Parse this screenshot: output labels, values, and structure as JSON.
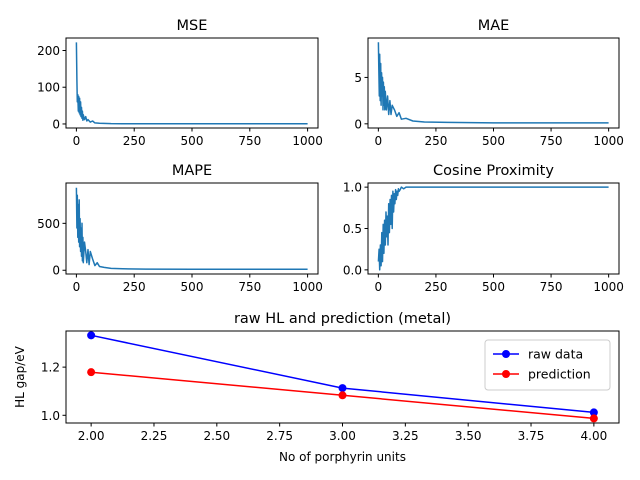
{
  "chart_data": [
    {
      "id": "mse",
      "type": "line",
      "title": "MSE",
      "xlabel": "",
      "ylabel": "",
      "xlim": [
        -45,
        1045
      ],
      "ylim": [
        -11,
        234
      ],
      "xticks": [
        0,
        250,
        500,
        750,
        1000
      ],
      "yticks": [
        0,
        100,
        200
      ],
      "color": "#1f77b4",
      "series": [
        {
          "x": [
            0,
            2,
            4,
            6,
            8,
            10,
            12,
            14,
            16,
            18,
            20,
            22,
            24,
            26,
            28,
            30,
            35,
            40,
            45,
            50,
            60,
            70,
            80,
            100,
            150,
            200,
            300,
            500,
            700,
            1000
          ],
          "y": [
            222,
            120,
            60,
            80,
            35,
            75,
            30,
            70,
            25,
            60,
            20,
            45,
            15,
            35,
            10,
            25,
            12,
            20,
            8,
            12,
            5,
            8,
            3,
            2,
            1,
            0.8,
            0.5,
            0.5,
            0.5,
            0.5
          ]
        }
      ]
    },
    {
      "id": "mae",
      "type": "line",
      "title": "MAE",
      "xlabel": "",
      "ylabel": "",
      "xlim": [
        -45,
        1045
      ],
      "ylim": [
        -0.45,
        9.25
      ],
      "xticks": [
        0,
        250,
        500,
        750,
        1000
      ],
      "yticks": [
        0,
        5
      ],
      "color": "#1f77b4",
      "series": [
        {
          "x": [
            0,
            2,
            4,
            6,
            8,
            10,
            12,
            14,
            16,
            18,
            20,
            22,
            24,
            26,
            28,
            30,
            35,
            40,
            45,
            50,
            55,
            60,
            70,
            80,
            90,
            100,
            120,
            150,
            200,
            300,
            500,
            700,
            1000
          ],
          "y": [
            8.8,
            6.0,
            3.0,
            7.5,
            2.5,
            6.5,
            2.0,
            5.5,
            3.0,
            5.0,
            1.5,
            4.5,
            2.0,
            4.0,
            1.5,
            3.5,
            1.5,
            3.0,
            1.0,
            2.5,
            1.0,
            2.0,
            1.5,
            0.8,
            1.2,
            0.5,
            0.6,
            0.3,
            0.2,
            0.15,
            0.1,
            0.1,
            0.1
          ]
        }
      ]
    },
    {
      "id": "mape",
      "type": "line",
      "title": "MAPE",
      "xlabel": "",
      "ylabel": "",
      "xlim": [
        -45,
        1045
      ],
      "ylim": [
        -40,
        930
      ],
      "xticks": [
        0,
        250,
        500,
        750,
        1000
      ],
      "yticks": [
        0,
        500
      ],
      "color": "#1f77b4",
      "series": [
        {
          "x": [
            0,
            2,
            4,
            6,
            8,
            10,
            12,
            14,
            16,
            18,
            20,
            22,
            24,
            26,
            28,
            30,
            35,
            40,
            45,
            50,
            55,
            60,
            70,
            80,
            90,
            100,
            120,
            150,
            200,
            300,
            500,
            700,
            1000
          ],
          "y": [
            880,
            450,
            800,
            350,
            700,
            300,
            750,
            250,
            550,
            200,
            450,
            150,
            500,
            100,
            350,
            80,
            300,
            200,
            80,
            220,
            60,
            200,
            120,
            50,
            80,
            40,
            30,
            20,
            15,
            12,
            10,
            10,
            10
          ]
        }
      ]
    },
    {
      "id": "cos",
      "type": "line",
      "title": "Cosine Proximity",
      "xlabel": "",
      "ylabel": "",
      "xlim": [
        -45,
        1045
      ],
      "ylim": [
        -0.05,
        1.05
      ],
      "xticks": [
        0,
        250,
        500,
        750,
        1000
      ],
      "yticks": [
        0.0,
        0.5,
        1.0
      ],
      "ytick_labels": [
        "0.0",
        "0.5",
        "1.0"
      ],
      "color": "#1f77b4",
      "series": [
        {
          "x": [
            0,
            3,
            6,
            9,
            12,
            15,
            18,
            21,
            24,
            27,
            30,
            33,
            36,
            39,
            42,
            45,
            48,
            51,
            54,
            57,
            60,
            63,
            66,
            69,
            72,
            75,
            78,
            81,
            84,
            87,
            90,
            95,
            100,
            110,
            120,
            150,
            200,
            300,
            500,
            700,
            1000
          ],
          "y": [
            0.1,
            0.25,
            0.0,
            0.3,
            0.05,
            0.45,
            0.1,
            0.55,
            0.2,
            0.6,
            0.3,
            0.7,
            0.4,
            0.65,
            0.3,
            0.8,
            0.45,
            0.85,
            0.55,
            0.9,
            0.5,
            0.95,
            0.7,
            0.92,
            0.8,
            0.97,
            0.85,
            0.95,
            0.9,
            0.98,
            0.95,
            0.97,
            1.0,
            0.98,
            1.0,
            1.0,
            1.0,
            1.0,
            1.0,
            1.0,
            1.0
          ]
        }
      ]
    },
    {
      "id": "hl",
      "type": "line",
      "title": "raw HL and prediction (metal)",
      "xlabel": "No of porphyrin units",
      "ylabel": "HL gap/eV",
      "xlim": [
        1.9,
        4.1
      ],
      "ylim": [
        0.968,
        1.35
      ],
      "xticks": [
        2.0,
        2.25,
        2.5,
        2.75,
        3.0,
        3.25,
        3.5,
        3.75,
        4.0
      ],
      "xtick_labels": [
        "2.00",
        "2.25",
        "2.50",
        "2.75",
        "3.00",
        "3.25",
        "3.50",
        "3.75",
        "4.00"
      ],
      "yticks": [
        1.0,
        1.2
      ],
      "ytick_labels": [
        "1.0",
        "1.2"
      ],
      "legend": "upper right",
      "series": [
        {
          "name": "raw data",
          "color": "#0000ff",
          "x": [
            2,
            3,
            4
          ],
          "y": [
            1.332,
            1.113,
            1.012
          ]
        },
        {
          "name": "prediction",
          "color": "#ff0000",
          "x": [
            2,
            3,
            4
          ],
          "y": [
            1.179,
            1.083,
            0.987
          ]
        }
      ]
    }
  ]
}
